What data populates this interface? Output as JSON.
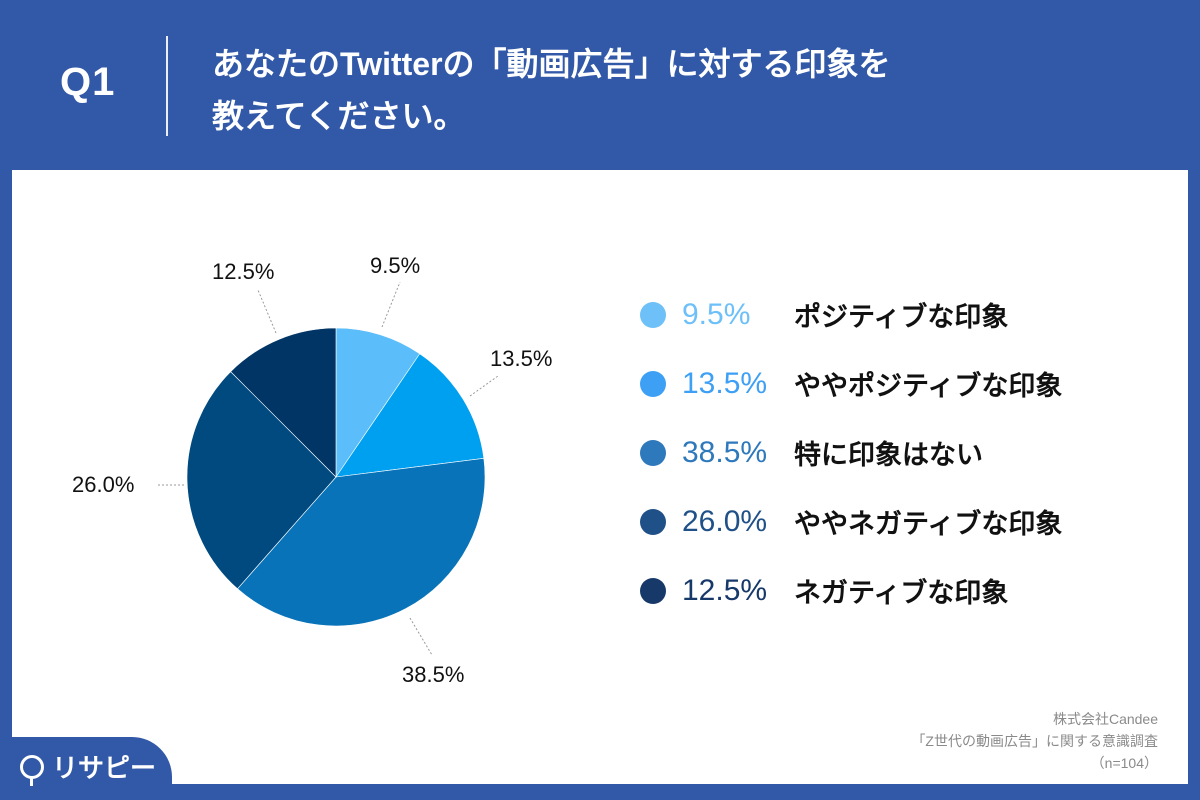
{
  "header": {
    "question_number": "Q1",
    "title_line1": "あなたのTwitterの「動画広告」に対する印象を",
    "title_line2": "教えてください。"
  },
  "chart_data": {
    "type": "pie",
    "title": "あなたのTwitterの「動画広告」に対する印象を教えてください。",
    "categories": [
      "ポジティブな印象",
      "ややポジティブな印象",
      "特に印象はない",
      "ややネガティブな印象",
      "ネガティブな印象"
    ],
    "values": [
      9.5,
      13.5,
      38.5,
      26.0,
      12.5
    ],
    "labels": [
      "9.5%",
      "13.5%",
      "38.5%",
      "26.0%",
      "12.5%"
    ],
    "colors": [
      "#5bbdf9",
      "#00a0f0",
      "#0873b9",
      "#004a80",
      "#003566"
    ],
    "legend_colors": [
      "#6ec0f8",
      "#3da0f5",
      "#2e78bc",
      "#1f5088",
      "#17396a"
    ],
    "start_angle": "12 o'clock, clockwise",
    "legend_position": "right",
    "n": 104
  },
  "legend": [
    {
      "pct": "9.5%",
      "label": "ポジティブな印象",
      "color": "#6ec0f8"
    },
    {
      "pct": "13.5%",
      "label": "ややポジティブな印象",
      "color": "#3da0f5"
    },
    {
      "pct": "38.5%",
      "label": "特に印象はない",
      "color": "#2e78bc"
    },
    {
      "pct": "26.0%",
      "label": "ややネガティブな印象",
      "color": "#1f5088"
    },
    {
      "pct": "12.5%",
      "label": "ネガティブな印象",
      "color": "#17396a"
    }
  ],
  "pie_labels": {
    "s0": "9.5%",
    "s1": "13.5%",
    "s2": "38.5%",
    "s3": "26.0%",
    "s4": "12.5%"
  },
  "source": {
    "company": "株式会社Candee",
    "survey": "「Z世代の動画広告」に関する意識調査",
    "sample": "（n=104）"
  },
  "logo": {
    "text": "リサピー"
  },
  "colors": {
    "background": "#3258a8",
    "panel": "#ffffff"
  }
}
